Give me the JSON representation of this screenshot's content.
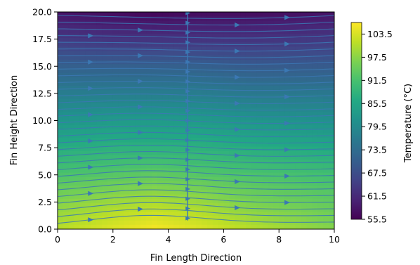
{
  "chart_data": {
    "type": "heatmap",
    "subtype": "temperature field with streamlines",
    "title": "",
    "xlabel": "Fin Length Direction",
    "ylabel": "Fin Height Direction",
    "xlim": [
      0,
      10
    ],
    "ylim": [
      0,
      20
    ],
    "x_ticks": [
      0,
      2,
      4,
      6,
      8,
      10
    ],
    "x_tick_labels": [
      "0",
      "2",
      "4",
      "6",
      "8",
      "10"
    ],
    "y_ticks": [
      0,
      2.5,
      5,
      7.5,
      10,
      12.5,
      15,
      17.5,
      20
    ],
    "y_tick_labels": [
      "0.0",
      "2.5",
      "5.0",
      "7.5",
      "10.0",
      "12.5",
      "15.0",
      "17.5",
      "20.0"
    ],
    "colorbar": {
      "label": "Temperature (°C)",
      "colormap": "viridis",
      "range": [
        55.5,
        106.5
      ],
      "ticks": [
        55.5,
        61.5,
        67.5,
        73.5,
        79.5,
        85.5,
        91.5,
        97.5,
        103.5
      ],
      "tick_labels": [
        "55.5",
        "61.5",
        "67.5",
        "73.5",
        "79.5",
        "85.5",
        "91.5",
        "97.5",
        "103.5"
      ]
    },
    "temperature_field": {
      "description": "hottest near base (y=0) around x≈3.5, decreasing with height",
      "x_samples": [
        0,
        2,
        3.5,
        5,
        7,
        10
      ],
      "y_samples": [
        0,
        2.5,
        5,
        7.5,
        10,
        12.5,
        15,
        17.5,
        20
      ],
      "values": [
        [
          101,
          104,
          106,
          104,
          101,
          97
        ],
        [
          97,
          99,
          100,
          99,
          96,
          94
        ],
        [
          92,
          93,
          94,
          93,
          92,
          91
        ],
        [
          87,
          88,
          88,
          88,
          87,
          86
        ],
        [
          82,
          83,
          83,
          83,
          82,
          81
        ],
        [
          77,
          77,
          77,
          77,
          76,
          76
        ],
        [
          71,
          71,
          71,
          71,
          70,
          70
        ],
        [
          64,
          63,
          63,
          63,
          63,
          64
        ],
        [
          58,
          57,
          56,
          57,
          57,
          58
        ]
      ]
    },
    "streamlines": {
      "color": "#3b78b4",
      "flow_direction": "left to right",
      "vertical_seed_line_x": 4.7
    }
  }
}
